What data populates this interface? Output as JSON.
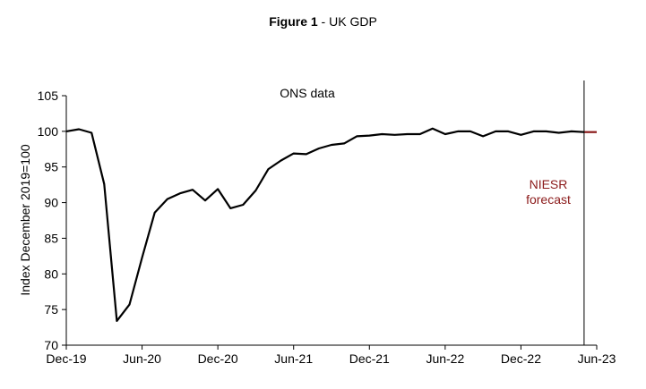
{
  "title_bold": "Figure 1",
  "title_rest": " - UK GDP",
  "chart_data": {
    "type": "line",
    "title": "Figure 1 - UK GDP",
    "ylabel": "Index December 2019=100",
    "xlabel": "",
    "ylim": [
      70,
      105
    ],
    "yticks": [
      70,
      75,
      80,
      85,
      90,
      95,
      100,
      105
    ],
    "xlim": [
      0,
      42
    ],
    "xticks": [
      {
        "pos": 0,
        "label": "Dec-19"
      },
      {
        "pos": 6,
        "label": "Jun-20"
      },
      {
        "pos": 12,
        "label": "Dec-20"
      },
      {
        "pos": 18,
        "label": "Jun-21"
      },
      {
        "pos": 24,
        "label": "Dec-21"
      },
      {
        "pos": 30,
        "label": "Jun-22"
      },
      {
        "pos": 36,
        "label": "Dec-22"
      },
      {
        "pos": 42,
        "label": "Jun-23"
      }
    ],
    "series": [
      {
        "name": "ONS data",
        "color": "#000000",
        "x": [
          0,
          1,
          2,
          3,
          4,
          5,
          6,
          7,
          8,
          9,
          10,
          11,
          12,
          13,
          14,
          15,
          16,
          17,
          18,
          19,
          20,
          21,
          22,
          23,
          24,
          25,
          26,
          27,
          28,
          29,
          30,
          31,
          32,
          33,
          34,
          35,
          36,
          37,
          38,
          39,
          40,
          41
        ],
        "values": [
          100.0,
          100.3,
          99.8,
          92.6,
          73.4,
          75.7,
          82.3,
          88.6,
          90.5,
          91.3,
          91.8,
          90.3,
          91.9,
          89.2,
          89.7,
          91.7,
          94.7,
          95.9,
          96.9,
          96.8,
          97.6,
          98.1,
          98.3,
          99.3,
          99.4,
          99.6,
          99.5,
          99.6,
          99.6,
          100.4,
          99.6,
          100.0,
          100.0,
          99.3,
          100.0,
          100.0,
          99.5,
          100.0,
          100.0,
          99.8,
          100.0,
          99.9
        ]
      },
      {
        "name": "NIESR forecast",
        "color": "#8b1a1a",
        "x": [
          41,
          42
        ],
        "values": [
          99.9,
          99.9
        ]
      }
    ],
    "divider_x": 41,
    "annotations": {
      "ons": "ONS data",
      "niesr_line1": "NIESR",
      "niesr_line2": "forecast"
    }
  }
}
